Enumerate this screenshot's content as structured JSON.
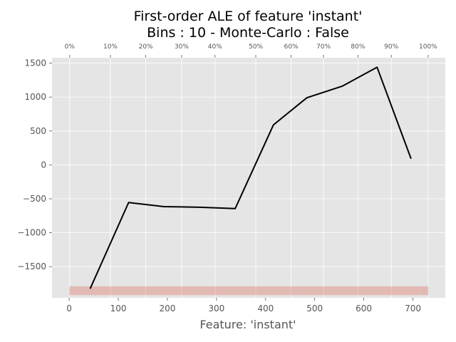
{
  "chart_data": {
    "type": "line",
    "title_line1": "First-order ALE of feature 'instant'",
    "title_line2": "Bins : 10 - Monte-Carlo : False",
    "xlabel": "Feature: 'instant'",
    "ylabel": "",
    "xlim": [
      -35,
      766
    ],
    "ylim": [
      -1960,
      1580
    ],
    "x_ticks": [
      0,
      100,
      200,
      300,
      400,
      500,
      600,
      700
    ],
    "y_ticks": [
      -1500,
      -1000,
      -500,
      0,
      500,
      1000,
      1500
    ],
    "y_tick_labels": [
      "−1500",
      "−1000",
      "−500",
      "0",
      "500",
      "1000",
      "1500"
    ],
    "quantile_labels": [
      "0%",
      "10%",
      "20%",
      "30%",
      "40%",
      "50%",
      "60%",
      "70%",
      "80%",
      "90%",
      "100%"
    ],
    "quantile_positions": [
      1,
      84,
      156,
      229,
      297,
      380,
      452,
      518,
      588,
      656,
      731
    ],
    "series": [
      {
        "x": [
          43,
          121,
          193,
          266,
          338,
          416,
          484,
          556,
          627,
          696
        ],
        "y": [
          -1820,
          -555,
          -615,
          -625,
          -645,
          590,
          990,
          1160,
          1440,
          95
        ]
      }
    ],
    "rug": {
      "x_start": 1,
      "x_end": 731,
      "y_low": -1920,
      "y_high": -1790
    },
    "grid": true,
    "colors": {
      "plot_bg": "#e5e5e5",
      "grid": "#ffffff",
      "line": "#000000",
      "rug": "#e08070",
      "tick_text": "#555555"
    }
  }
}
